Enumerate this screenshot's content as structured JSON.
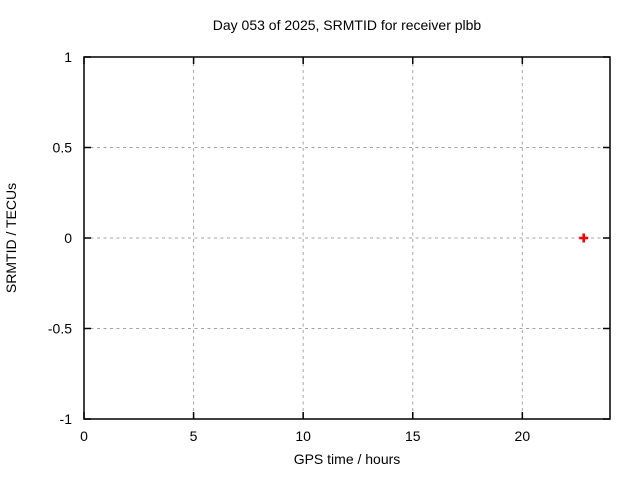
{
  "colors": {
    "background": "#ffffff",
    "axis": "#000000",
    "grid": "#a6a6a6",
    "marker": "#ff0000"
  },
  "chart_data": {
    "type": "scatter",
    "title": "Day 053 of 2025, SRMTID for receiver plbb",
    "xlabel": "GPS time / hours",
    "ylabel": "SRMTID / TECUs",
    "xlim": [
      0,
      24
    ],
    "ylim": [
      -1,
      1
    ],
    "xticks": [
      0,
      5,
      10,
      15,
      20
    ],
    "xtick_labels": [
      "0",
      "5",
      "10",
      "15",
      "20"
    ],
    "yticks": [
      -1,
      -0.5,
      0,
      0.5,
      1
    ],
    "ytick_labels": [
      "-1",
      "-0.5",
      "0",
      "0.5",
      "1"
    ],
    "grid": true,
    "grid_style": "dashed",
    "legend": "none",
    "series": [
      {
        "name": "SRMTID",
        "marker": "plus",
        "color": "#ff0000",
        "points": [
          {
            "x": 22.8,
            "y": 0.0
          }
        ]
      }
    ]
  }
}
